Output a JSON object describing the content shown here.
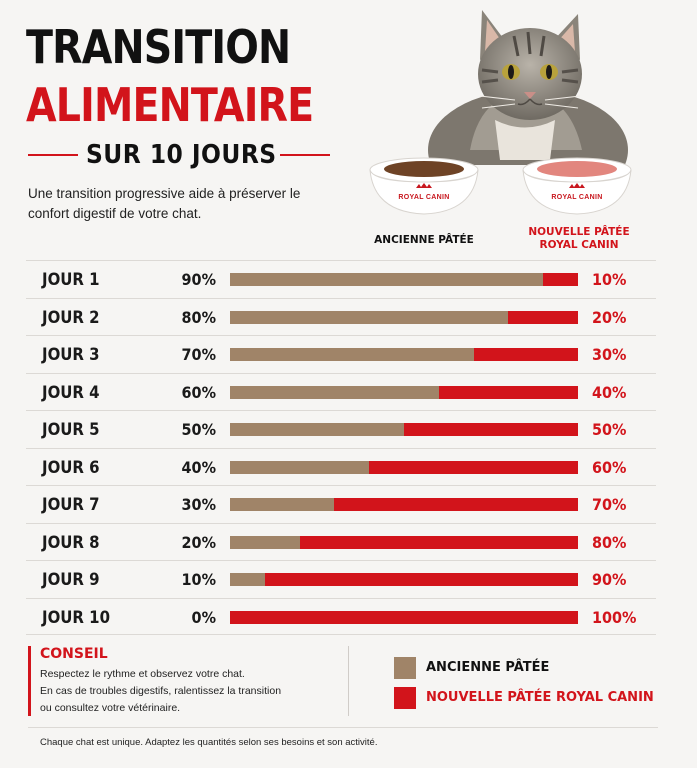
{
  "title": {
    "line1": "TRANSITION",
    "line2": "ALIMENTAIRE",
    "subtitle": "SUR 10 JOURS"
  },
  "intro": "Une transition progressive aide à préserver le confort digestif de votre chat.",
  "bowls": {
    "old_brand": "ROYAL CANIN",
    "new_brand": "ROYAL CANIN",
    "old_label": "ANCIENNE PÂTÉE",
    "new_label_1": "NOUVELLE PÂTÉE",
    "new_label_2": "ROYAL CANIN"
  },
  "schedule": [
    {
      "day": "JOUR 1",
      "old_pct": "90%",
      "new_pct": "10%",
      "old": 90
    },
    {
      "day": "JOUR 2",
      "old_pct": "80%",
      "new_pct": "20%",
      "old": 80
    },
    {
      "day": "JOUR 3",
      "old_pct": "70%",
      "new_pct": "30%",
      "old": 70
    },
    {
      "day": "JOUR 4",
      "old_pct": "60%",
      "new_pct": "40%",
      "old": 60
    },
    {
      "day": "JOUR 5",
      "old_pct": "50%",
      "new_pct": "50%",
      "old": 50
    },
    {
      "day": "JOUR 6",
      "old_pct": "40%",
      "new_pct": "60%",
      "old": 40
    },
    {
      "day": "JOUR 7",
      "old_pct": "30%",
      "new_pct": "70%",
      "old": 30
    },
    {
      "day": "JOUR 8",
      "old_pct": "20%",
      "new_pct": "80%",
      "old": 20
    },
    {
      "day": "JOUR 9",
      "old_pct": "10%",
      "new_pct": "90%",
      "old": 10
    },
    {
      "day": "JOUR 10",
      "old_pct": "0%",
      "new_pct": "100%",
      "old": 0
    }
  ],
  "tip": {
    "title": "CONSEIL",
    "line1": "Respectez le rythme et observez votre chat.",
    "line2": "En cas de troubles digestifs, ralentissez la transition",
    "line3": "ou consultez votre vétérinaire."
  },
  "legend": {
    "old": "ANCIENNE PÂTÉE",
    "new": "NOUVELLE PÂTÉE ROYAL CANIN"
  },
  "footer": "Chaque chat est unique. Adaptez les quantités selon ses besoins et son activité.",
  "colors": {
    "old": "#a08468",
    "new": "#d2141b"
  }
}
